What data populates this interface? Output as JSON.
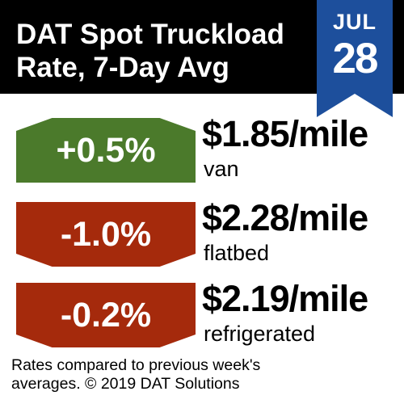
{
  "header": {
    "title": "DAT Spot Truckload\nRate, 7-Day Avg",
    "background_color": "#000000"
  },
  "date_badge": {
    "month": "JUL",
    "day": "28",
    "color": "#1d4f9c"
  },
  "rates": [
    {
      "change": "+0.5%",
      "direction": "up",
      "badge_color": "#4b7a2b",
      "rate": "$1.85/mile",
      "equipment": "van"
    },
    {
      "change": "-1.0%",
      "direction": "down",
      "badge_color": "#a52a0c",
      "rate": "$2.28/mile",
      "equipment": "flatbed"
    },
    {
      "change": "-0.2%",
      "direction": "down",
      "badge_color": "#a52a0c",
      "rate": "$2.19/mile",
      "equipment": "refrigerated"
    }
  ],
  "footnote": "Rates compared to previous week's\naverages. © 2019 DAT Solutions"
}
